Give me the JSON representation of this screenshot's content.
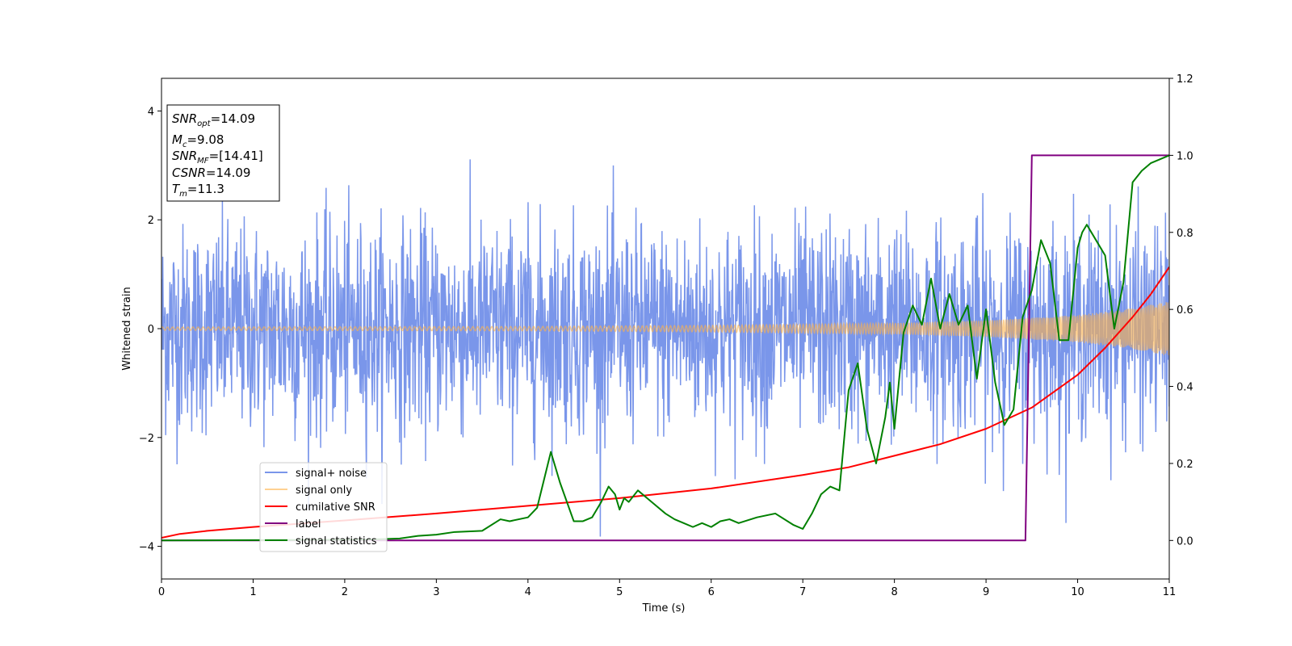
{
  "chart_data": {
    "type": "line",
    "title": "",
    "xlabel": "Time (s)",
    "ylabel": "Whitened strain",
    "xlim": [
      0,
      11
    ],
    "ylim_left": [
      -4.6,
      4.6
    ],
    "ylim_right": [
      -0.1,
      1.2
    ],
    "xticks": [
      "0",
      "1",
      "2",
      "3",
      "4",
      "5",
      "6",
      "7",
      "8",
      "9",
      "10",
      "11"
    ],
    "yticks_left": [
      "4",
      "2",
      "0",
      "−2",
      "−4"
    ],
    "yticks_right": [
      "1.2",
      "1.0",
      "0.8",
      "0.6",
      "0.4",
      "0.2",
      "0.0"
    ],
    "grid": false,
    "legend_placement": "lower-left",
    "info_box": {
      "snr_opt": {
        "sym": "SNR",
        "sub": "opt",
        "value": "=14.09"
      },
      "mc": {
        "sym": "M",
        "sub": "c",
        "value": "=9.08"
      },
      "snr_mf": {
        "sym": "SNR",
        "sub": "MF",
        "value": "=[14.41]"
      },
      "csnr": {
        "sym": "CSNR",
        "sub": "",
        "value": "=14.09"
      },
      "tm": {
        "sym": "T",
        "sub": "m",
        "value": "=11.3"
      }
    },
    "series": [
      {
        "name": "signal+ noise",
        "axis": "left",
        "color": "#4169e1",
        "kind": "noise",
        "sigma": 0.95,
        "clip": [
          -4.15,
          4.15
        ]
      },
      {
        "name": "signal only",
        "axis": "left",
        "color": "#ffb347",
        "kind": "chirp",
        "envelope": {
          "x": [
            0,
            4,
            6,
            8,
            9,
            10,
            10.5,
            11
          ],
          "y": [
            0.03,
            0.04,
            0.06,
            0.1,
            0.15,
            0.25,
            0.35,
            0.5
          ]
        }
      },
      {
        "name": "cumilative SNR",
        "axis": "right",
        "color": "#ff0000",
        "x": [
          0,
          0.2,
          0.5,
          1,
          2,
          3,
          4,
          5,
          6,
          7,
          7.5,
          8,
          8.5,
          9,
          9.5,
          10,
          10.3,
          10.6,
          10.8,
          11
        ],
        "y": [
          0.007,
          0.017,
          0.025,
          0.035,
          0.052,
          0.07,
          0.09,
          0.11,
          0.135,
          0.17,
          0.19,
          0.22,
          0.25,
          0.29,
          0.345,
          0.43,
          0.5,
          0.58,
          0.64,
          0.71
        ]
      },
      {
        "name": "label",
        "axis": "right",
        "color": "#800080",
        "x": [
          0,
          9.43,
          9.5,
          11
        ],
        "y": [
          0,
          0,
          1,
          1
        ]
      },
      {
        "name": "signal statistics",
        "axis": "right",
        "color": "#008000",
        "x": [
          0,
          2.2,
          2.6,
          2.8,
          3.0,
          3.2,
          3.5,
          3.7,
          3.8,
          4.0,
          4.1,
          4.25,
          4.35,
          4.5,
          4.6,
          4.7,
          4.8,
          4.88,
          4.95,
          5.0,
          5.05,
          5.1,
          5.2,
          5.3,
          5.4,
          5.5,
          5.6,
          5.7,
          5.8,
          5.9,
          6.0,
          6.1,
          6.2,
          6.3,
          6.5,
          6.7,
          6.9,
          7.0,
          7.1,
          7.2,
          7.3,
          7.4,
          7.5,
          7.6,
          7.7,
          7.8,
          7.9,
          7.95,
          8.0,
          8.1,
          8.2,
          8.3,
          8.4,
          8.5,
          8.6,
          8.7,
          8.8,
          8.9,
          9.0,
          9.1,
          9.2,
          9.3,
          9.4,
          9.5,
          9.6,
          9.7,
          9.8,
          9.9,
          10.0,
          10.05,
          10.1,
          10.2,
          10.3,
          10.4,
          10.5,
          10.6,
          10.7,
          10.8,
          10.9,
          11.0
        ],
        "y": [
          0.0,
          0.002,
          0.005,
          0.012,
          0.015,
          0.022,
          0.025,
          0.055,
          0.05,
          0.06,
          0.085,
          0.23,
          0.15,
          0.05,
          0.05,
          0.06,
          0.1,
          0.14,
          0.12,
          0.08,
          0.11,
          0.1,
          0.13,
          0.11,
          0.09,
          0.07,
          0.055,
          0.045,
          0.035,
          0.045,
          0.035,
          0.05,
          0.055,
          0.045,
          0.06,
          0.07,
          0.04,
          0.03,
          0.07,
          0.12,
          0.14,
          0.13,
          0.39,
          0.46,
          0.29,
          0.2,
          0.32,
          0.41,
          0.29,
          0.54,
          0.61,
          0.56,
          0.68,
          0.55,
          0.64,
          0.56,
          0.61,
          0.42,
          0.6,
          0.41,
          0.3,
          0.34,
          0.58,
          0.65,
          0.78,
          0.72,
          0.52,
          0.52,
          0.76,
          0.8,
          0.82,
          0.78,
          0.74,
          0.55,
          0.67,
          0.93,
          0.96,
          0.98,
          0.99,
          1.0
        ]
      }
    ]
  }
}
